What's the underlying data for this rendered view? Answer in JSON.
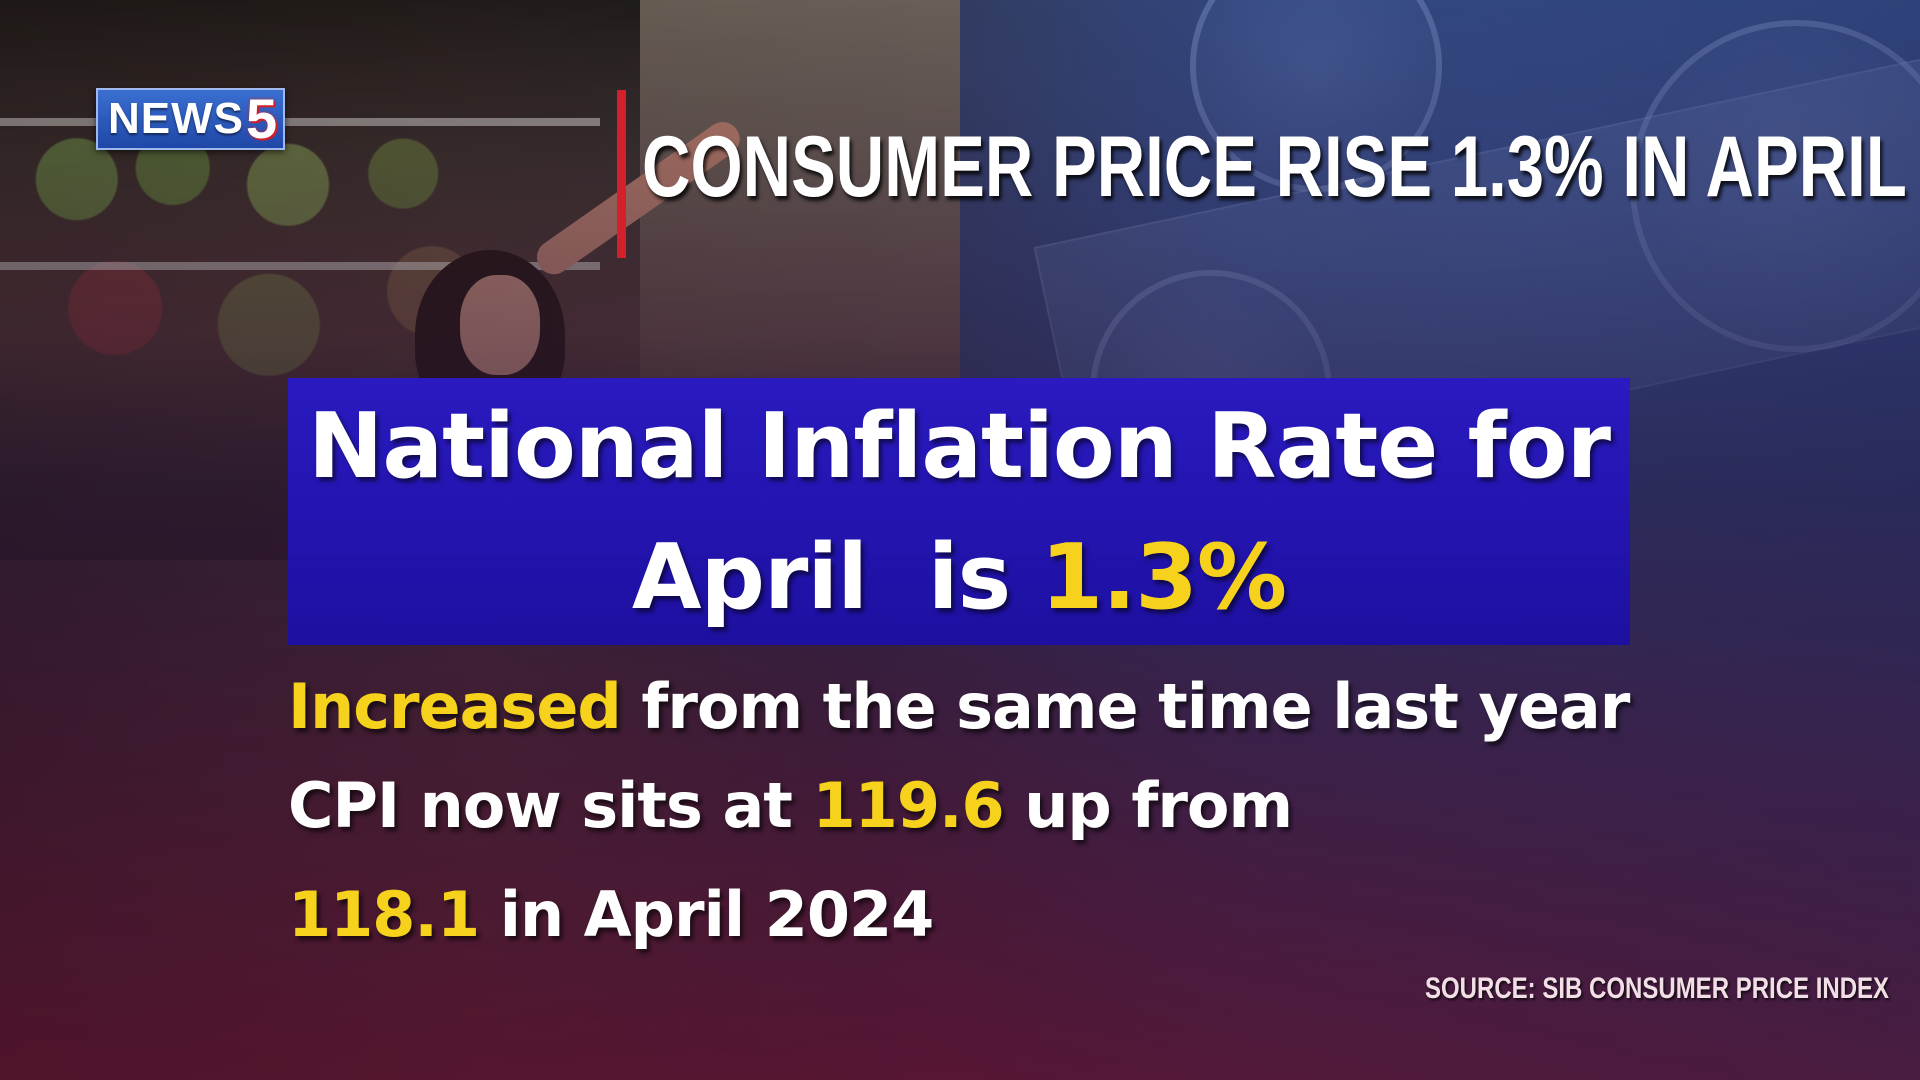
{
  "logo": {
    "text": "NEWS",
    "number": "5"
  },
  "headline": "CONSUMER PRICE RISE 1.3% IN APRIL",
  "main_box": {
    "line1": "National Inflation Rate for",
    "line2_prefix": "April  is ",
    "line2_highlight": "1.3%"
  },
  "details": {
    "line1_highlight": "Increased",
    "line1_rest": " from the same time last year",
    "line2_prefix": "CPI now sits at ",
    "line2_highlight": "119.6",
    "line2_suffix": " up from",
    "line3_highlight": "118.1",
    "line3_rest": " in April 2024"
  },
  "source": "SOURCE: SIB CONSUMER PRICE INDEX",
  "colors": {
    "highlight": "#f7d21c",
    "box": "#2a1ac0",
    "accent_bar": "#d4202a",
    "logo_blue": "#2a56bb"
  }
}
